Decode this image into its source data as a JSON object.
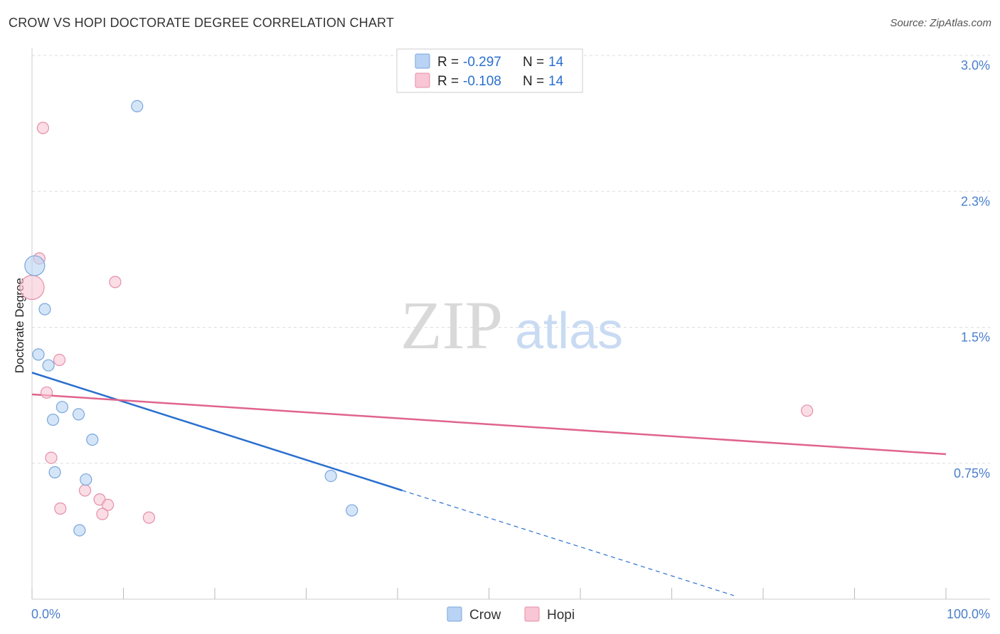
{
  "header": {
    "title": "CROW VS HOPI DOCTORATE DEGREE CORRELATION CHART",
    "source": "Source: ZipAtlas.com"
  },
  "watermark": {
    "zip": "ZIP",
    "atlas": "atlas"
  },
  "colors": {
    "crow_fill": "#b8d3f4",
    "crow_stroke": "#7aa6dc",
    "crow_line": "#2a6fcf",
    "hopi_fill": "#f8c6d4",
    "hopi_stroke": "#e48fa9",
    "hopi_line": "#e0648d",
    "axis_text": "#4a7fcc",
    "grid": "#dddddd"
  },
  "legend": {
    "rows": [
      {
        "series": "Crow",
        "r_label": "R = ",
        "r_value": "-0.297",
        "n_label": "N = ",
        "n_value": "14"
      },
      {
        "series": "Hopi",
        "r_label": "R = ",
        "r_value": "-0.108",
        "n_label": "N = ",
        "n_value": "14"
      }
    ]
  },
  "chart_data": {
    "type": "scatter",
    "title": "CROW VS HOPI DOCTORATE DEGREE CORRELATION CHART",
    "xlabel": "",
    "ylabel": "Doctorate Degree",
    "xlim": [
      0,
      100
    ],
    "ylim": [
      0,
      3.0
    ],
    "x_tick_labels": [
      "0.0%",
      "100.0%"
    ],
    "y_ticks": [
      0.75,
      1.5,
      2.25,
      3.0
    ],
    "y_tick_labels": [
      "0.75%",
      "1.5%",
      "2.3%",
      "3.0%"
    ],
    "grid": true,
    "legend_position": "top-center",
    "series": [
      {
        "name": "Crow",
        "x": [
          11.5,
          0.3,
          1.4,
          0.7,
          1.8,
          3.3,
          2.3,
          5.1,
          6.6,
          2.5,
          5.9,
          32.7,
          35.0,
          5.2
        ],
        "y": [
          2.72,
          1.84,
          1.6,
          1.35,
          1.29,
          1.06,
          0.99,
          1.02,
          0.88,
          0.7,
          0.66,
          0.68,
          0.49,
          0.38
        ],
        "sizes": [
          16,
          28,
          16,
          16,
          16,
          16,
          16,
          16,
          16,
          16,
          16,
          16,
          16,
          16
        ],
        "trend": {
          "x_start": 0,
          "y_start": 1.25,
          "x_solid_end": 40.5,
          "y_solid_end": 0.6,
          "x_dash_end": 76.8,
          "y_dash_end": 0.02
        }
      },
      {
        "name": "Hopi",
        "x": [
          1.2,
          0.8,
          0.0,
          9.1,
          3.0,
          1.6,
          2.1,
          84.8,
          5.8,
          7.4,
          8.3,
          3.1,
          7.7,
          12.8
        ],
        "y": [
          2.6,
          1.88,
          1.72,
          1.75,
          1.32,
          1.14,
          0.78,
          1.04,
          0.6,
          0.55,
          0.52,
          0.5,
          0.47,
          0.45
        ],
        "sizes": [
          16,
          16,
          34,
          16,
          16,
          16,
          16,
          16,
          16,
          16,
          16,
          16,
          16,
          16
        ],
        "trend": {
          "x_start": 0,
          "y_start": 1.13,
          "x_end": 100,
          "y_end": 0.8
        }
      }
    ]
  }
}
